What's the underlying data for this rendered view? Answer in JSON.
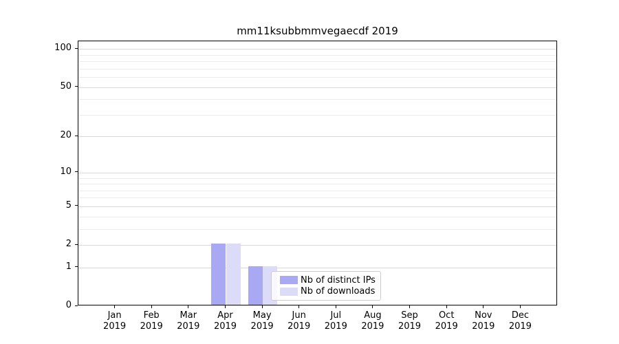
{
  "title": "mm11ksubbmmvegaecdf 2019",
  "colors": {
    "distinct_ips": "#a8a8f3",
    "downloads": "#dcdcf9",
    "grid_major": "#d9d9d9",
    "grid_minor": "#ebebeb",
    "axis": "#000000",
    "legend_border": "#cccccc"
  },
  "chart_data": {
    "type": "bar",
    "title": "mm11ksubbmmvegaecdf 2019",
    "xlabel": "",
    "ylabel": "",
    "categories": [
      {
        "month": "Jan",
        "year": "2019"
      },
      {
        "month": "Feb",
        "year": "2019"
      },
      {
        "month": "Mar",
        "year": "2019"
      },
      {
        "month": "Apr",
        "year": "2019"
      },
      {
        "month": "May",
        "year": "2019"
      },
      {
        "month": "Jun",
        "year": "2019"
      },
      {
        "month": "Jul",
        "year": "2019"
      },
      {
        "month": "Aug",
        "year": "2019"
      },
      {
        "month": "Sep",
        "year": "2019"
      },
      {
        "month": "Oct",
        "year": "2019"
      },
      {
        "month": "Nov",
        "year": "2019"
      },
      {
        "month": "Dec",
        "year": "2019"
      }
    ],
    "series": [
      {
        "name": "Nb of distinct IPs",
        "color": "#a8a8f3",
        "values": [
          0,
          0,
          0,
          2,
          1,
          0,
          0,
          0,
          0,
          0,
          0,
          0
        ]
      },
      {
        "name": "Nb of downloads",
        "color": "#dcdcf9",
        "values": [
          0,
          0,
          0,
          2,
          1,
          0,
          0,
          0,
          0,
          0,
          0,
          0
        ]
      }
    ],
    "yscale": "log1p",
    "yticks": [
      0,
      1,
      2,
      5,
      10,
      20,
      50,
      100
    ],
    "minor_yticks": [
      3,
      4,
      6,
      7,
      8,
      9,
      30,
      40,
      60,
      70,
      80,
      90
    ],
    "ylim": [
      0,
      115
    ],
    "grid": true,
    "legend_position": "inside lower-center"
  }
}
